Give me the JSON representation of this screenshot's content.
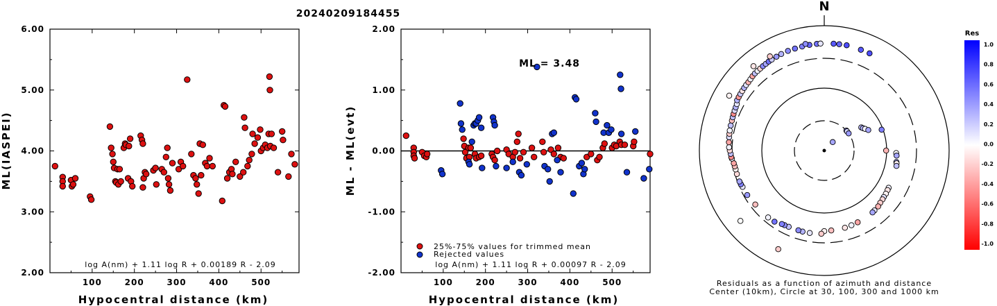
{
  "title": "20240209184455",
  "chart_data": [
    {
      "type": "scatter",
      "xlabel": "Hypocentral distance (km)",
      "ylabel": "ML(IASPEI)",
      "xlim": [
        0,
        590
      ],
      "ylim": [
        2.0,
        6.0
      ],
      "x_ticks": [
        "100",
        "200",
        "300",
        "400",
        "500"
      ],
      "y_ticks": [
        "2.00",
        "3.00",
        "4.00",
        "5.00",
        "6.00"
      ],
      "formula": "log A(nm) + 1.11 log R + 0.00189 R - 2.09",
      "marker_color": "#dd1111",
      "points": [
        [
          12,
          3.75
        ],
        [
          30,
          3.57
        ],
        [
          30,
          3.5
        ],
        [
          30,
          3.42
        ],
        [
          50,
          3.52
        ],
        [
          52,
          3.42
        ],
        [
          55,
          3.45
        ],
        [
          60,
          3.55
        ],
        [
          95,
          3.25
        ],
        [
          98,
          3.2
        ],
        [
          142,
          4.4
        ],
        [
          145,
          4.05
        ],
        [
          148,
          3.95
        ],
        [
          150,
          3.82
        ],
        [
          152,
          3.72
        ],
        [
          155,
          3.5
        ],
        [
          157,
          3.48
        ],
        [
          160,
          3.7
        ],
        [
          162,
          3.45
        ],
        [
          165,
          3.7
        ],
        [
          168,
          3.5
        ],
        [
          175,
          4.05
        ],
        [
          178,
          4.12
        ],
        [
          180,
          4.1
        ],
        [
          185,
          3.55
        ],
        [
          187,
          4.08
        ],
        [
          190,
          4.2
        ],
        [
          192,
          3.5
        ],
        [
          195,
          3.42
        ],
        [
          215,
          4.25
        ],
        [
          218,
          4.18
        ],
        [
          220,
          4.12
        ],
        [
          220,
          3.4
        ],
        [
          222,
          3.55
        ],
        [
          225,
          3.65
        ],
        [
          228,
          3.62
        ],
        [
          245,
          3.68
        ],
        [
          250,
          3.72
        ],
        [
          252,
          3.45
        ],
        [
          265,
          3.7
        ],
        [
          270,
          3.65
        ],
        [
          275,
          3.9
        ],
        [
          278,
          4.05
        ],
        [
          280,
          3.55
        ],
        [
          282,
          3.45
        ],
        [
          285,
          3.35
        ],
        [
          290,
          3.8
        ],
        [
          305,
          3.7
        ],
        [
          310,
          3.82
        ],
        [
          315,
          3.75
        ],
        [
          325,
          5.17
        ],
        [
          335,
          3.95
        ],
        [
          340,
          3.6
        ],
        [
          345,
          3.55
        ],
        [
          348,
          3.45
        ],
        [
          352,
          3.3
        ],
        [
          355,
          4.12
        ],
        [
          358,
          3.6
        ],
        [
          362,
          4.1
        ],
        [
          368,
          3.8
        ],
        [
          372,
          3.75
        ],
        [
          378,
          3.88
        ],
        [
          385,
          3.75
        ],
        [
          408,
          3.18
        ],
        [
          412,
          4.75
        ],
        [
          415,
          4.73
        ],
        [
          420,
          3.55
        ],
        [
          425,
          3.65
        ],
        [
          430,
          3.7
        ],
        [
          432,
          3.62
        ],
        [
          440,
          3.82
        ],
        [
          450,
          3.58
        ],
        [
          458,
          3.65
        ],
        [
          460,
          4.55
        ],
        [
          462,
          4.38
        ],
        [
          468,
          3.75
        ],
        [
          472,
          3.85
        ],
        [
          478,
          3.95
        ],
        [
          480,
          4.28
        ],
        [
          485,
          4.12
        ],
        [
          492,
          4.22
        ],
        [
          498,
          4.35
        ],
        [
          500,
          4.0
        ],
        [
          505,
          4.05
        ],
        [
          510,
          4.1
        ],
        [
          515,
          4.05
        ],
        [
          518,
          4.28
        ],
        [
          520,
          5.22
        ],
        [
          521,
          5.0
        ],
        [
          522,
          4.08
        ],
        [
          525,
          4.28
        ],
        [
          530,
          4.05
        ],
        [
          540,
          3.65
        ],
        [
          550,
          4.32
        ],
        [
          552,
          4.18
        ],
        [
          565,
          3.58
        ],
        [
          572,
          3.95
        ],
        [
          580,
          3.78
        ]
      ]
    },
    {
      "type": "scatter",
      "xlabel": "Hypocentral distance (km)",
      "ylabel": "ML - ML(evt)",
      "xlim": [
        0,
        590
      ],
      "ylim": [
        -2.0,
        2.0
      ],
      "x_ticks": [
        "100",
        "200",
        "300",
        "400",
        "500"
      ],
      "y_ticks": [
        "-2.00",
        "-1.00",
        "0.00",
        "1.00",
        "2.00"
      ],
      "annotation": "ML = 3.48",
      "formula": "log A(nm) + 1.11 log R + 0.00097 R - 2.09",
      "legend": [
        {
          "label": "25%-75% values for trimmed mean",
          "color": "#dd1111"
        },
        {
          "label": "Rejected values",
          "color": "#1133cc"
        }
      ],
      "series": [
        {
          "name": "25%-75% values for trimmed mean",
          "color": "#dd1111",
          "points": [
            [
              12,
              0.25
            ],
            [
              30,
              0.05
            ],
            [
              30,
              -0.02
            ],
            [
              30,
              -0.08
            ],
            [
              32,
              -0.12
            ],
            [
              50,
              -0.02
            ],
            [
              55,
              -0.08
            ],
            [
              60,
              -0.1
            ],
            [
              62,
              -0.05
            ],
            [
              148,
              0.2
            ],
            [
              150,
              0.08
            ],
            [
              152,
              -0.02
            ],
            [
              155,
              -0.12
            ],
            [
              160,
              0.05
            ],
            [
              162,
              -0.1
            ],
            [
              165,
              0.05
            ],
            [
              175,
              -0.05
            ],
            [
              178,
              -0.12
            ],
            [
              185,
              -0.1
            ],
            [
              190,
              -0.08
            ],
            [
              215,
              -0.05
            ],
            [
              218,
              -0.1
            ],
            [
              222,
              -0.15
            ],
            [
              228,
              0.0
            ],
            [
              250,
              0.02
            ],
            [
              255,
              -0.05
            ],
            [
              265,
              -0.1
            ],
            [
              270,
              -0.02
            ],
            [
              275,
              0.15
            ],
            [
              278,
              0.28
            ],
            [
              282,
              -0.12
            ],
            [
              290,
              -0.02
            ],
            [
              310,
              0.05
            ],
            [
              315,
              -0.1
            ],
            [
              335,
              0.15
            ],
            [
              338,
              -0.02
            ],
            [
              355,
              0.02
            ],
            [
              362,
              -0.05
            ],
            [
              372,
              0.05
            ],
            [
              378,
              -0.1
            ],
            [
              385,
              -0.12
            ],
            [
              440,
              -0.1
            ],
            [
              450,
              -0.05
            ],
            [
              465,
              -0.15
            ],
            [
              470,
              -0.1
            ],
            [
              478,
              0.05
            ],
            [
              482,
              0.12
            ],
            [
              492,
              0.3
            ],
            [
              500,
              0.05
            ],
            [
              505,
              0.1
            ],
            [
              510,
              0.08
            ],
            [
              518,
              0.15
            ],
            [
              522,
              0.1
            ],
            [
              530,
              0.1
            ],
            [
              550,
              0.08
            ],
            [
              552,
              0.15
            ],
            [
              590,
              -0.05
            ]
          ]
        },
        {
          "name": "Rejected values",
          "color": "#1133cc",
          "points": [
            [
              95,
              -0.32
            ],
            [
              98,
              -0.38
            ],
            [
              140,
              0.78
            ],
            [
              142,
              0.45
            ],
            [
              145,
              0.35
            ],
            [
              160,
              -0.18
            ],
            [
              162,
              -0.22
            ],
            [
              168,
              0.15
            ],
            [
              172,
              0.42
            ],
            [
              175,
              0.45
            ],
            [
              178,
              0.45
            ],
            [
              182,
              0.5
            ],
            [
              185,
              0.55
            ],
            [
              190,
              0.38
            ],
            [
              192,
              -0.28
            ],
            [
              218,
              0.55
            ],
            [
              220,
              0.48
            ],
            [
              222,
              0.42
            ],
            [
              225,
              -0.25
            ],
            [
              250,
              -0.28
            ],
            [
              265,
              -0.18
            ],
            [
              280,
              -0.35
            ],
            [
              285,
              -0.4
            ],
            [
              298,
              -0.22
            ],
            [
              322,
              1.38
            ],
            [
              340,
              -0.25
            ],
            [
              348,
              -0.3
            ],
            [
              352,
              -0.5
            ],
            [
              358,
              0.28
            ],
            [
              362,
              0.3
            ],
            [
              370,
              -0.15
            ],
            [
              378,
              -0.35
            ],
            [
              408,
              -0.7
            ],
            [
              412,
              0.88
            ],
            [
              415,
              0.85
            ],
            [
              422,
              -0.25
            ],
            [
              428,
              -0.2
            ],
            [
              432,
              -0.38
            ],
            [
              435,
              -0.3
            ],
            [
              460,
              0.62
            ],
            [
              462,
              0.48
            ],
            [
              480,
              0.3
            ],
            [
              488,
              0.42
            ],
            [
              492,
              0.3
            ],
            [
              498,
              0.35
            ],
            [
              519,
              1.25
            ],
            [
              521,
              1.02
            ],
            [
              522,
              0.28
            ],
            [
              535,
              -0.35
            ],
            [
              555,
              0.32
            ],
            [
              575,
              -0.45
            ],
            [
              588,
              -0.3
            ]
          ]
        }
      ]
    },
    {
      "type": "polar-scatter",
      "north_label": "N",
      "caption_line1": "Residuals as a function of azimuth and distance",
      "caption_line2": "Center (10km), Circle at 30, 100, 300 and 1000 km",
      "colorbar_title": "Res",
      "colorbar_ticks": [
        "1.0",
        "0.8",
        "0.6",
        "0.4",
        "0.2",
        "0.0",
        "-0.2",
        "-0.4",
        "-0.6",
        "-0.8",
        "-1.0"
      ],
      "colorbar_range": [
        -1.0,
        1.0
      ],
      "circles_km": [
        30,
        100,
        300,
        1000
      ],
      "points": [
        [
          45,
          0.35
        ],
        [
          48,
          0.55
        ],
        [
          50,
          0.15
        ],
        [
          55,
          0.4
        ],
        [
          58,
          0.25
        ],
        [
          60,
          0.3
        ],
        [
          62,
          0.05
        ],
        [
          65,
          0.35
        ],
        [
          70,
          0.5
        ],
        [
          90,
          -0.3
        ],
        [
          92,
          0.0
        ],
        [
          94,
          0.35
        ],
        [
          99,
          0.35
        ],
        [
          100,
          -0.05
        ],
        [
          102,
          0.25
        ],
        [
          120,
          0.05
        ],
        [
          122,
          -0.1
        ],
        [
          125,
          -0.05
        ],
        [
          128,
          0.1
        ],
        [
          130,
          -0.15
        ],
        [
          133,
          -0.2
        ],
        [
          136,
          -0.3
        ],
        [
          140,
          0.1
        ],
        [
          142,
          0.35
        ],
        [
          155,
          -0.35
        ],
        [
          160,
          0.05
        ],
        [
          165,
          -0.1
        ],
        [
          175,
          -0.25
        ],
        [
          180,
          -0.05
        ],
        [
          182,
          -0.2
        ],
        [
          190,
          0.1
        ],
        [
          195,
          0.3
        ],
        [
          198,
          0.45
        ],
        [
          205,
          0.25
        ],
        [
          208,
          0.45
        ],
        [
          210,
          0.5
        ],
        [
          215,
          0.55
        ],
        [
          220,
          0.05
        ],
        [
          232,
          -0.25
        ],
        [
          240,
          0.4
        ],
        [
          246,
          0.1
        ],
        [
          248,
          0.5
        ],
        [
          250,
          0.35
        ],
        [
          255,
          -0.15
        ],
        [
          258,
          -0.05
        ],
        [
          260,
          -0.25
        ],
        [
          262,
          -0.35
        ],
        [
          265,
          0.05
        ],
        [
          266,
          -0.45
        ],
        [
          268,
          0.25
        ],
        [
          270,
          -0.15
        ],
        [
          272,
          0.05
        ],
        [
          275,
          -0.35
        ],
        [
          278,
          0.15
        ],
        [
          280,
          -0.2
        ],
        [
          282,
          0.05
        ],
        [
          285,
          0.25
        ],
        [
          288,
          -0.25
        ],
        [
          290,
          0.25
        ],
        [
          292,
          -0.45
        ],
        [
          294,
          0.15
        ],
        [
          296,
          0.3
        ],
        [
          298,
          0.1
        ],
        [
          300,
          0.3
        ],
        [
          302,
          -0.4
        ],
        [
          304,
          0.2
        ],
        [
          306,
          -0.1
        ],
        [
          308,
          0.3
        ],
        [
          310,
          0.1
        ],
        [
          312,
          -0.3
        ],
        [
          314,
          0.05
        ],
        [
          316,
          -0.35
        ],
        [
          318,
          0.25
        ],
        [
          320,
          0.05
        ],
        [
          322,
          -0.15
        ],
        [
          324,
          0.45
        ],
        [
          326,
          0.35
        ],
        [
          328,
          0.55
        ],
        [
          330,
          0.2
        ],
        [
          333,
          0.4
        ],
        [
          336,
          0.3
        ],
        [
          340,
          0.45
        ],
        [
          344,
          0.55
        ],
        [
          348,
          0.5
        ],
        [
          352,
          0.6
        ],
        [
          356,
          0.55
        ],
        [
          358,
          0.1
        ],
        [
          20,
          0.65
        ],
        [
          25,
          0.7
        ],
        [
          5,
          0.65
        ],
        [
          8,
          0.6
        ],
        [
          12,
          0.7
        ],
        [
          350,
          0.45
        ],
        [
          330,
          -0.2
        ],
        [
          205,
          -0.2
        ],
        [
          230,
          0.0
        ],
        [
          300,
          -0.05
        ],
        [
          320,
          -0.1
        ]
      ]
    }
  ]
}
